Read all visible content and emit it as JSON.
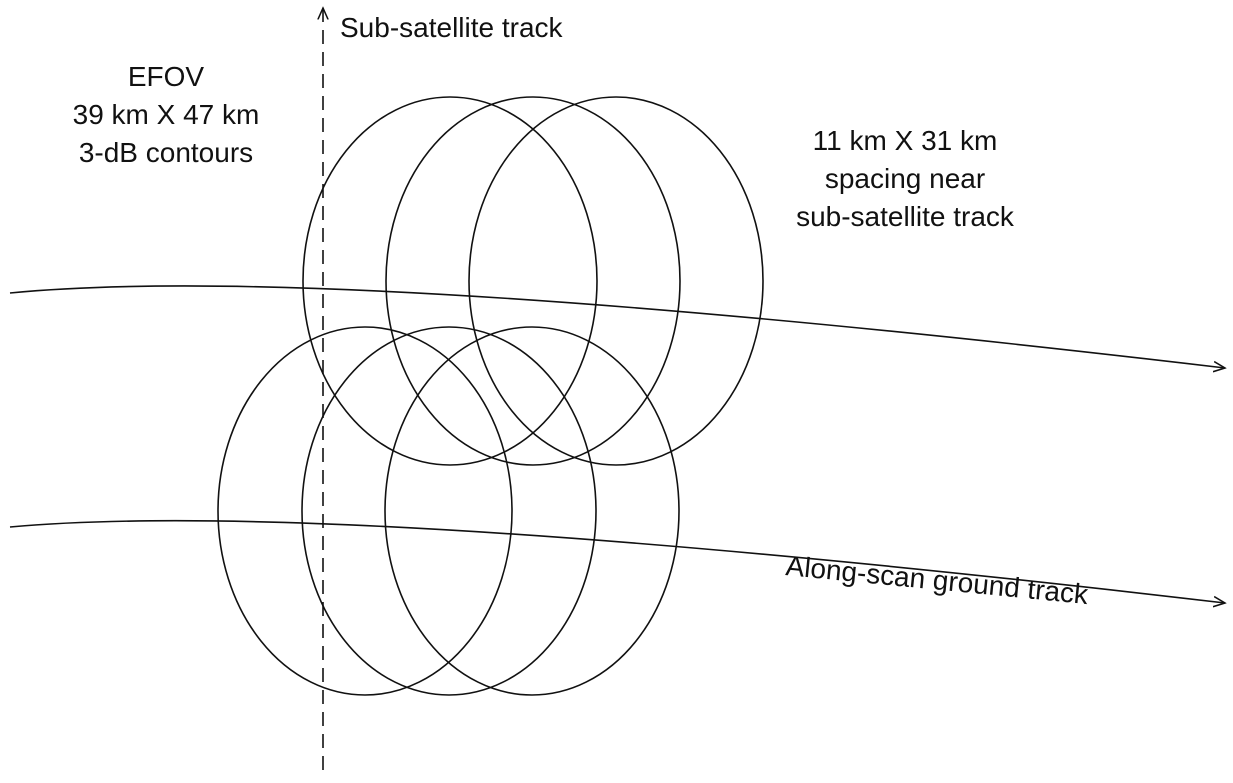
{
  "labels": {
    "sub_satellite_track": "Sub-satellite track",
    "efov": [
      "EFOV",
      "39 km X 47 km",
      "3-dB contours"
    ],
    "spacing": [
      "11 km X 31 km",
      "spacing near",
      "sub-satellite track"
    ],
    "along_scan": "Along-scan ground track"
  }
}
